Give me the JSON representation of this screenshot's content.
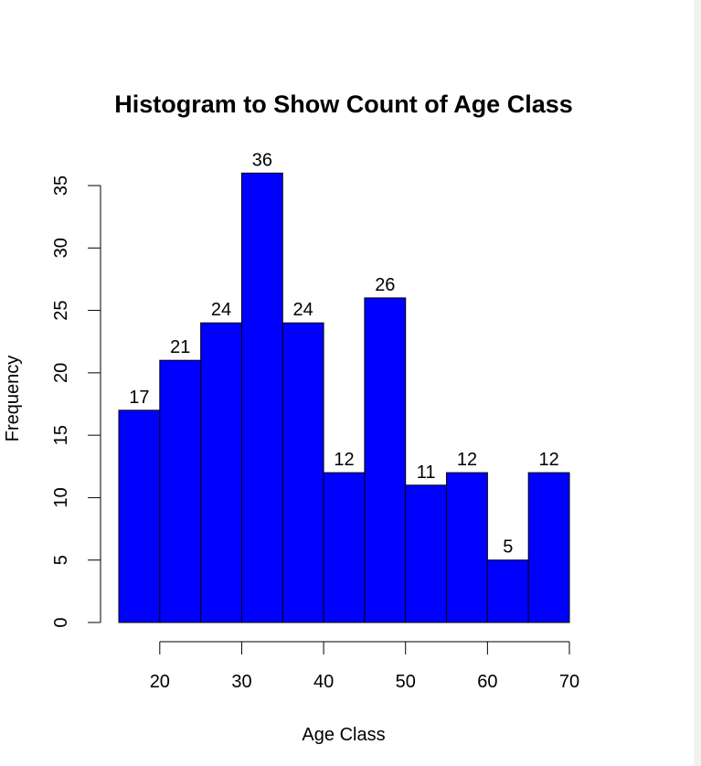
{
  "chart_data": {
    "type": "bar",
    "title": "Histogram to Show Count of Age Class",
    "xlabel": "Age Class",
    "ylabel": "Frequency",
    "bin_edges": [
      15,
      20,
      25,
      30,
      35,
      40,
      45,
      50,
      55,
      60,
      65,
      70
    ],
    "values": [
      17,
      21,
      24,
      36,
      24,
      12,
      26,
      11,
      12,
      5,
      12
    ],
    "data_labels": [
      "17",
      "21",
      "24",
      "36",
      "24",
      "12",
      "26",
      "11",
      "12",
      "5",
      "12"
    ],
    "x_ticks": [
      20,
      30,
      40,
      50,
      60,
      70
    ],
    "y_ticks": [
      0,
      5,
      10,
      15,
      20,
      25,
      30,
      35
    ],
    "xlim": [
      15,
      70
    ],
    "ylim": [
      0,
      35
    ],
    "grid": false,
    "bar_color": "#0000ff",
    "bar_edge_color": "#000000"
  }
}
